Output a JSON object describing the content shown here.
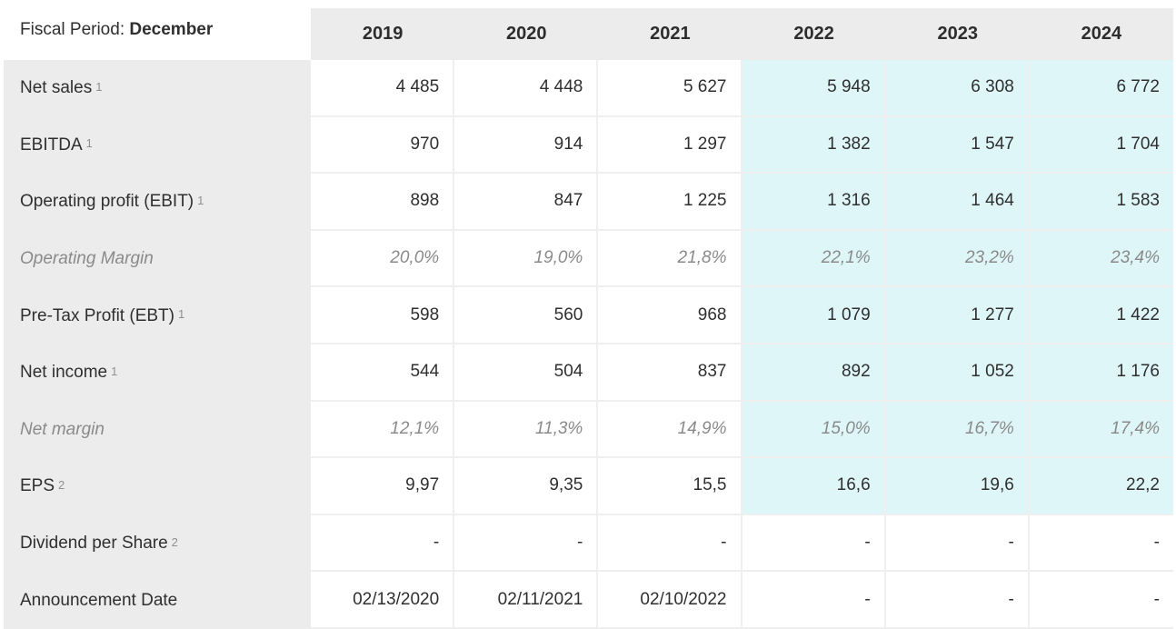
{
  "header": {
    "fiscal_period_label": "Fiscal Period: ",
    "fiscal_period_value": "December"
  },
  "colors": {
    "header_bg": "#ececec",
    "label_column_bg": "#ececec",
    "estimate_cell_bg": "#dff6f8",
    "grid_line": "#efefef",
    "text": "#2f2f2f",
    "muted_italic_text": "#8a8a8a",
    "footnote_text": "#8f8f8f"
  },
  "chart_data": {
    "type": "table",
    "title": "Fiscal Period: December",
    "columns": [
      "2019",
      "2020",
      "2021",
      "2022",
      "2023",
      "2024"
    ],
    "estimate_columns": [
      "2022",
      "2023",
      "2024"
    ],
    "rows": [
      {
        "label": "Net sales",
        "footnote": "1",
        "italic": false,
        "estimates_highlighted": true,
        "values": [
          "4 485",
          "4 448",
          "5 627",
          "5 948",
          "6 308",
          "6 772"
        ]
      },
      {
        "label": "EBITDA",
        "footnote": "1",
        "italic": false,
        "estimates_highlighted": true,
        "values": [
          "970",
          "914",
          "1 297",
          "1 382",
          "1 547",
          "1 704"
        ]
      },
      {
        "label": "Operating profit (EBIT)",
        "footnote": "1",
        "italic": false,
        "estimates_highlighted": true,
        "values": [
          "898",
          "847",
          "1 225",
          "1 316",
          "1 464",
          "1 583"
        ]
      },
      {
        "label": "Operating Margin",
        "footnote": "",
        "italic": true,
        "estimates_highlighted": true,
        "values": [
          "20,0%",
          "19,0%",
          "21,8%",
          "22,1%",
          "23,2%",
          "23,4%"
        ]
      },
      {
        "label": "Pre-Tax Profit (EBT)",
        "footnote": "1",
        "italic": false,
        "estimates_highlighted": true,
        "values": [
          "598",
          "560",
          "968",
          "1 079",
          "1 277",
          "1 422"
        ]
      },
      {
        "label": "Net income",
        "footnote": "1",
        "italic": false,
        "estimates_highlighted": true,
        "values": [
          "544",
          "504",
          "837",
          "892",
          "1 052",
          "1 176"
        ]
      },
      {
        "label": "Net margin",
        "footnote": "",
        "italic": true,
        "estimates_highlighted": true,
        "values": [
          "12,1%",
          "11,3%",
          "14,9%",
          "15,0%",
          "16,7%",
          "17,4%"
        ]
      },
      {
        "label": "EPS",
        "footnote": "2",
        "italic": false,
        "estimates_highlighted": true,
        "values": [
          "9,97",
          "9,35",
          "15,5",
          "16,6",
          "19,6",
          "22,2"
        ]
      },
      {
        "label": "Dividend per Share",
        "footnote": "2",
        "italic": false,
        "estimates_highlighted": false,
        "values": [
          "-",
          "-",
          "-",
          "-",
          "-",
          "-"
        ]
      },
      {
        "label": "Announcement Date",
        "footnote": "",
        "italic": false,
        "estimates_highlighted": false,
        "values": [
          "02/13/2020",
          "02/11/2021",
          "02/10/2022",
          "-",
          "-",
          "-"
        ]
      }
    ]
  }
}
